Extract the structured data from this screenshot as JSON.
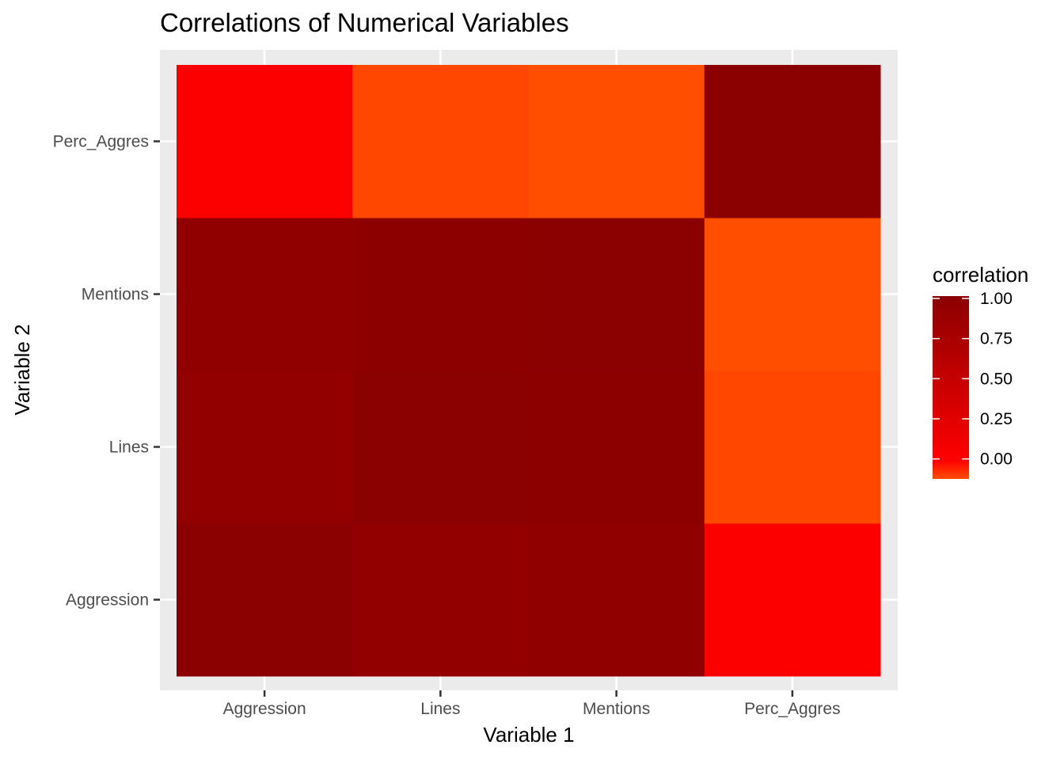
{
  "chart_data": {
    "type": "heatmap",
    "title": "Correlations of Numerical Variables",
    "xlabel": "Variable 1",
    "ylabel": "Variable 2",
    "x_categories": [
      "Aggression",
      "Lines",
      "Mentions",
      "Perc_Aggres"
    ],
    "y_categories": [
      "Aggression",
      "Lines",
      "Mentions",
      "Perc_Aggres"
    ],
    "values": [
      [
        1.0,
        0.93,
        0.95,
        0.03
      ],
      [
        0.93,
        1.0,
        0.99,
        -0.1
      ],
      [
        0.95,
        0.99,
        1.0,
        -0.11
      ],
      [
        0.03,
        -0.1,
        -0.11,
        1.0
      ]
    ],
    "grid": true,
    "legend": {
      "title": "correlation",
      "position": "right",
      "ticks": [
        1.0,
        0.75,
        0.5,
        0.25,
        0.0
      ],
      "tick_labels": [
        "1.00",
        "0.75",
        "0.50",
        "0.25",
        "0.00"
      ],
      "range": [
        -0.11,
        1.0
      ],
      "colors": {
        "low": "#ff4e00",
        "zero": "#ff0000",
        "high": "#8b0000"
      }
    },
    "panel_background": "#ebebeb",
    "gridline_color": "#ffffff"
  }
}
